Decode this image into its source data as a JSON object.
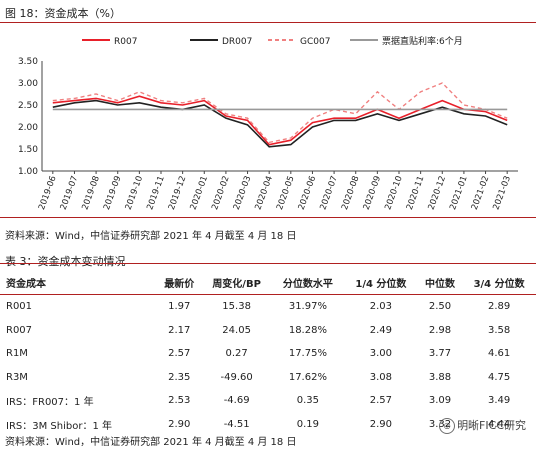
{
  "figure": {
    "caption": "图 18：资金成本（%）",
    "source": "资料来源：Wind，中信证券研究部  2021 年 4 月截至 4 月 18 日"
  },
  "chart_data": {
    "type": "line",
    "title": "",
    "xlabel": "",
    "ylabel": "",
    "ylim": [
      1.0,
      3.5
    ],
    "yticks": [
      "1.00",
      "1.50",
      "2.00",
      "2.50",
      "3.00",
      "3.50"
    ],
    "categories": [
      "2019-06",
      "2019-07",
      "2019-08",
      "2019-09",
      "2019-10",
      "2019-11",
      "2019-12",
      "2020-01",
      "2020-02",
      "2020-03",
      "2020-04",
      "2020-05",
      "2020-06",
      "2020-07",
      "2020-08",
      "2020-09",
      "2020-10",
      "2020-11",
      "2020-12",
      "2021-01",
      "2021-02",
      "2021-03"
    ],
    "legend_position": "top",
    "series": [
      {
        "name": "R007",
        "color": "#e8202a",
        "style": "solid",
        "values": [
          2.55,
          2.6,
          2.65,
          2.55,
          2.7,
          2.55,
          2.5,
          2.6,
          2.25,
          2.15,
          1.6,
          1.7,
          2.1,
          2.2,
          2.2,
          2.4,
          2.2,
          2.4,
          2.6,
          2.4,
          2.35,
          2.15
        ]
      },
      {
        "name": "DR007",
        "color": "#222222",
        "style": "solid",
        "values": [
          2.45,
          2.55,
          2.6,
          2.5,
          2.55,
          2.45,
          2.4,
          2.5,
          2.2,
          2.05,
          1.55,
          1.6,
          2.0,
          2.15,
          2.15,
          2.3,
          2.15,
          2.3,
          2.45,
          2.3,
          2.25,
          2.05
        ]
      },
      {
        "name": "GC007",
        "color": "#f08080",
        "style": "dashed",
        "values": [
          2.6,
          2.65,
          2.75,
          2.6,
          2.8,
          2.6,
          2.55,
          2.65,
          2.3,
          2.2,
          1.65,
          1.75,
          2.2,
          2.4,
          2.3,
          2.8,
          2.4,
          2.8,
          3.0,
          2.5,
          2.4,
          2.2
        ]
      },
      {
        "name": "票据直贴利率:6个月",
        "color": "#999999",
        "style": "solid",
        "values": [
          2.4,
          2.4,
          2.4,
          2.4,
          2.4,
          2.4,
          2.4,
          2.4,
          2.4,
          2.4,
          2.4,
          2.4,
          2.4,
          2.4,
          2.4,
          2.4,
          2.4,
          2.4,
          2.4,
          2.4,
          2.4,
          2.4
        ]
      }
    ]
  },
  "table": {
    "caption": "表 3：资金成本变动情况",
    "headers": [
      "资金成本",
      "最新价",
      "周变化/BP",
      "分位数水平",
      "1/4 分位数",
      "中位数",
      "3/4 分位数"
    ],
    "rows": [
      [
        "R001",
        "1.97",
        "15.38",
        "31.97%",
        "2.03",
        "2.50",
        "2.89"
      ],
      [
        "R007",
        "2.17",
        "24.05",
        "18.28%",
        "2.49",
        "2.98",
        "3.58"
      ],
      [
        "R1M",
        "2.57",
        "0.27",
        "17.75%",
        "3.00",
        "3.77",
        "4.61"
      ],
      [
        "R3M",
        "2.35",
        "-49.60",
        "17.62%",
        "3.08",
        "3.88",
        "4.75"
      ],
      [
        "IRS：FR007：1 年",
        "2.53",
        "-4.69",
        "0.35",
        "2.57",
        "3.09",
        "3.49"
      ],
      [
        "IRS：3M Shibor：1 年",
        "2.90",
        "-4.51",
        "0.19",
        "2.90",
        "3.32",
        "4.44"
      ]
    ],
    "source": "资料来源：Wind，中信证券研究部  2021 年 4 月截至 4 月 18 日"
  },
  "watermark": {
    "text": "明晰FICC研究",
    "icon": "wechat-icon"
  }
}
